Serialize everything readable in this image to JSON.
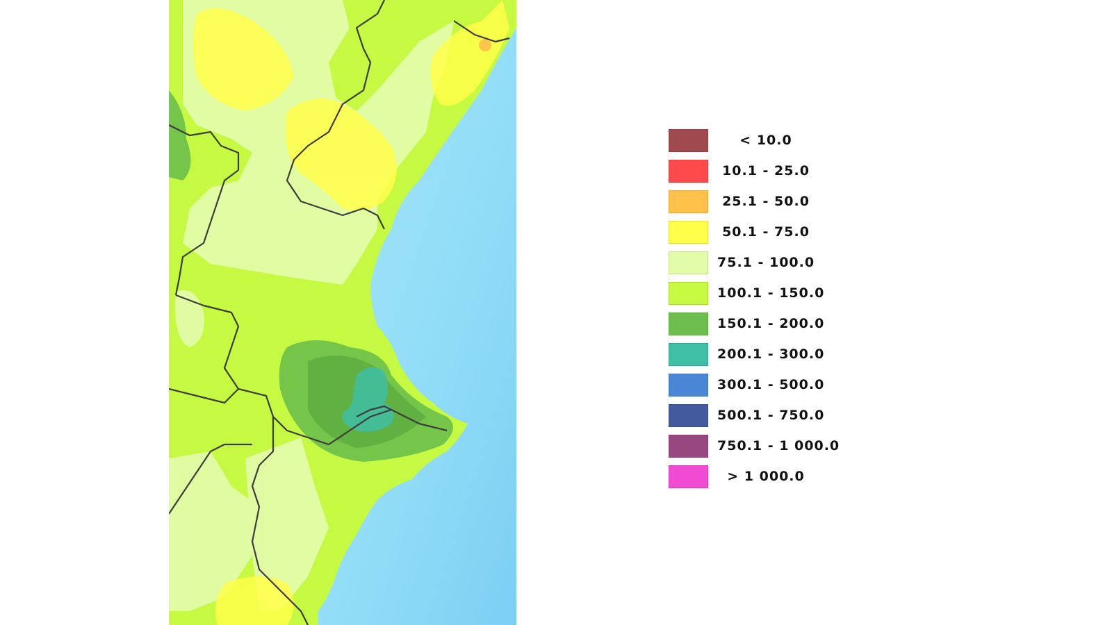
{
  "legend": {
    "items": [
      {
        "label": "< 10.0",
        "color": "#a04a4e"
      },
      {
        "label": "10.1 - 25.0",
        "color": "#fe4a4a"
      },
      {
        "label": "25.1 - 50.0",
        "color": "#ffc14a"
      },
      {
        "label": "50.1 - 75.0",
        "color": "#ffff4a"
      },
      {
        "label": "75.1 - 100.0",
        "color": "#e3fca9"
      },
      {
        "label": "100.1 - 150.0",
        "color": "#c6f941"
      },
      {
        "label": "150.1 - 200.0",
        "color": "#6cbf4c"
      },
      {
        "label": "200.1 - 300.0",
        "color": "#3fbfa6"
      },
      {
        "label": "300.1 - 500.0",
        "color": "#4a86d6"
      },
      {
        "label": "500.1 - 750.0",
        "color": "#435b9e"
      },
      {
        "label": "750.1 - 1 000.0",
        "color": "#99487f"
      },
      {
        "label": "> 1 000.0",
        "color": "#f24bd3"
      }
    ]
  },
  "map": {
    "sea_color": "#8fdcf7",
    "zone_colors": {
      "pale_green": "#e3fca9",
      "light_green": "#c6f941",
      "mid_green": "#6cbf4c",
      "dark_green": "#4f9e3c",
      "teal": "#3fbfa6",
      "yellow": "#ffff4a",
      "orange": "#ffc14a",
      "border": "#3c3c3c"
    }
  }
}
